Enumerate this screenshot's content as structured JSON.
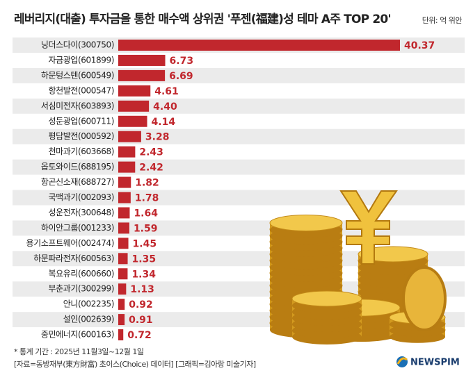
{
  "chart_data": {
    "type": "bar",
    "orientation": "horizontal",
    "title": "레버리지(대출) 투자금을 통한 매수액 상위권 '푸젠(福建)성 테마 A주 TOP 20'",
    "unit": "단위: 억 위안",
    "categories": [
      "닝더스다이(300750)",
      "자금광업(601899)",
      "하문텅스텐(600549)",
      "항천발전(000547)",
      "서심미전자(603893)",
      "성둔광업(600711)",
      "평담발전(000592)",
      "천마과기(603668)",
      "옵토와이드(688195)",
      "항곤신소재(688727)",
      "국맥과기(002093)",
      "성운전자(300648)",
      "하이안그룹(001233)",
      "용기소프트웨어(002474)",
      "하문파라전자(600563)",
      "복요유리(600660)",
      "부춘과기(300299)",
      "안니(002235)",
      "설인(002639)",
      "중민에너지(600163)"
    ],
    "values": [
      40.37,
      6.73,
      6.69,
      4.61,
      4.4,
      4.14,
      3.28,
      2.43,
      2.42,
      1.82,
      1.78,
      1.64,
      1.59,
      1.45,
      1.35,
      1.34,
      1.13,
      0.92,
      0.91,
      0.72
    ],
    "value_labels": [
      "40.37",
      "6.73",
      "6.69",
      "4.61",
      "4.40",
      "4.14",
      "3.28",
      "2.43",
      "2.42",
      "1.82",
      "1.78",
      "1.64",
      "1.59",
      "1.45",
      "1.35",
      "1.34",
      "1.13",
      "0.92",
      "0.91",
      "0.72"
    ],
    "color": "#c1272d",
    "footnotes": [
      "* 통계 기간 : 2025년 11월3일~12월 1일",
      "[자료=동방재부(東方財富) 초이스(Choice) 데이터] [그래픽=김아랑 미술기자]"
    ],
    "logo": "NEWSPIM"
  }
}
